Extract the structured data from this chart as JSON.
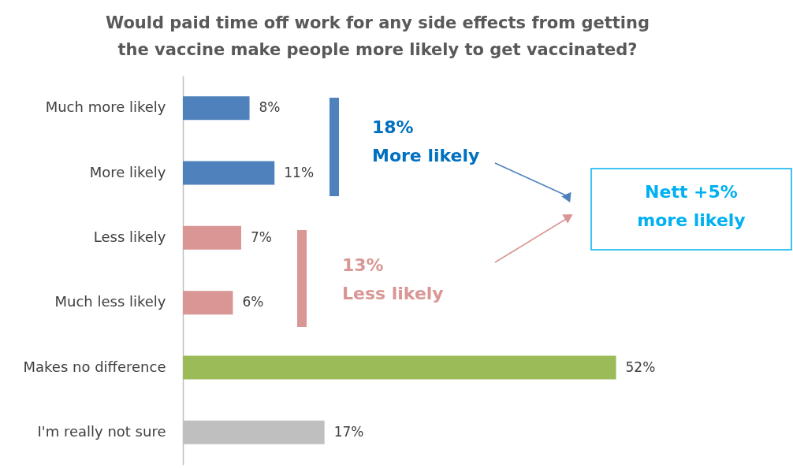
{
  "chart_data": {
    "type": "bar",
    "orientation": "horizontal",
    "title": [
      "Would paid time off work for any side effects from getting",
      "the vaccine make people more likely to get vaccinated?"
    ],
    "categories": [
      "Much more likely",
      "More likely",
      "Less likely",
      "Much less likely",
      "Makes no difference",
      "I'm really not sure"
    ],
    "values": [
      8,
      11,
      7,
      6,
      52,
      17
    ],
    "value_labels": [
      "8%",
      "11%",
      "7%",
      "6%",
      "52%",
      "17%"
    ],
    "colors": [
      "#4f81bd",
      "#4f81bd",
      "#d99694",
      "#d99694",
      "#9bbb59",
      "#bfbfbf"
    ],
    "annotations": [
      "18%\nMore likely",
      "13%\nLess likely",
      "Nett +5%\nmore likely"
    ],
    "grid": false
  }
}
